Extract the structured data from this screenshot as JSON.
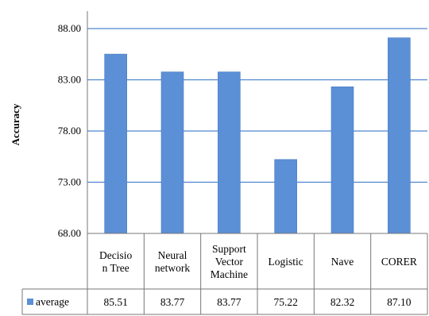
{
  "chart_data": {
    "type": "bar",
    "ylabel": "Accuracy",
    "ylim": [
      68,
      88
    ],
    "yticks": [
      "68.00",
      "73.00",
      "78.00",
      "83.00",
      "88.00"
    ],
    "grid": true,
    "categories": [
      [
        "Decisio",
        "n Tree"
      ],
      [
        "Neural",
        "network"
      ],
      [
        "Support",
        "Vector",
        "Machine"
      ],
      [
        "Logistic"
      ],
      [
        "Nave"
      ],
      [
        "CORER"
      ]
    ],
    "series": [
      {
        "name": "average",
        "values": [
          85.51,
          83.77,
          83.77,
          75.22,
          82.32,
          87.1
        ],
        "labels": [
          "85.51",
          "83.77",
          "83.77",
          "75.22",
          "82.32",
          "87.10"
        ]
      }
    ],
    "data_table": true,
    "colors": {
      "bar": "#5b8fd6",
      "bar_edge": "#4a7cc2",
      "grid": "#4f86d0",
      "table_line": "#777777"
    }
  }
}
